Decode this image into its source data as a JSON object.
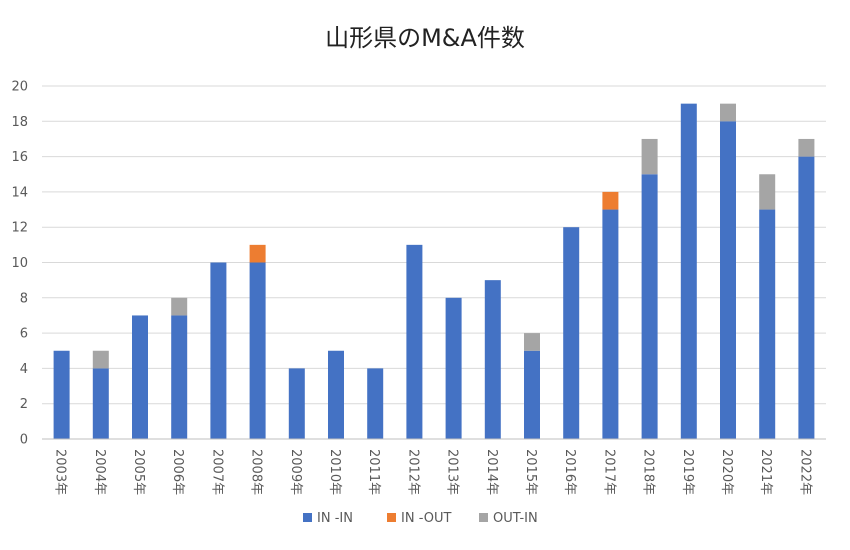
{
  "chart_data": {
    "type": "bar",
    "stacked": true,
    "title": "山形県のM&A件数",
    "xlabel": "",
    "ylabel": "",
    "ylim": [
      0,
      20
    ],
    "yticks": [
      "0",
      "2",
      "4",
      "6",
      "8",
      "10",
      "12",
      "14",
      "16",
      "18",
      "20"
    ],
    "grid": true,
    "legend_position": "bottom",
    "categories": [
      "2003年",
      "2004年",
      "2005年",
      "2006年",
      "2007年",
      "2008年",
      "2009年",
      "2010年",
      "2011年",
      "2012年",
      "2013年",
      "2014年",
      "2015年",
      "2016年",
      "2017年",
      "2018年",
      "2019年",
      "2020年",
      "2021年",
      "2022年"
    ],
    "series": [
      {
        "name": "IN -IN",
        "color": "#4472c4",
        "values": [
          5,
          4,
          7,
          7,
          10,
          10,
          4,
          5,
          4,
          11,
          8,
          9,
          5,
          12,
          13,
          15,
          19,
          18,
          13,
          16
        ]
      },
      {
        "name": "IN -OUT",
        "color": "#ed7d31",
        "values": [
          0,
          0,
          0,
          0,
          0,
          1,
          0,
          0,
          0,
          0,
          0,
          0,
          0,
          0,
          1,
          0,
          0,
          0,
          0,
          0
        ]
      },
      {
        "name": "OUT-IN",
        "color": "#a5a5a5",
        "values": [
          0,
          1,
          0,
          1,
          0,
          0,
          0,
          0,
          0,
          0,
          0,
          0,
          1,
          0,
          0,
          2,
          0,
          1,
          2,
          1
        ]
      }
    ]
  }
}
